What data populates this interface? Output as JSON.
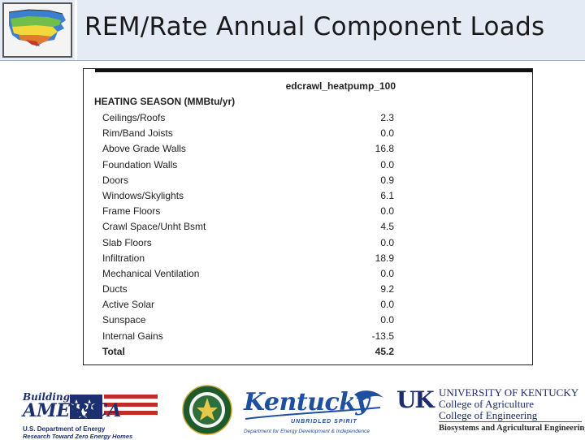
{
  "slide": {
    "title": "REM/Rate Annual Component Loads"
  },
  "report": {
    "column_header": "edcrawl_heatpump_100",
    "section_title": "HEATING SEASON (MMBtu/yr)",
    "rows": [
      {
        "label": "Ceilings/Roofs",
        "value": "2.3"
      },
      {
        "label": "Rim/Band Joists",
        "value": "0.0"
      },
      {
        "label": "Above Grade Walls",
        "value": "16.8"
      },
      {
        "label": "Foundation Walls",
        "value": "0.0"
      },
      {
        "label": "Doors",
        "value": "0.9"
      },
      {
        "label": "Windows/Skylights",
        "value": "6.1"
      },
      {
        "label": "Frame Floors",
        "value": "0.0"
      },
      {
        "label": "Crawl Space/Unht Bsmt",
        "value": "4.5"
      },
      {
        "label": "Slab Floors",
        "value": "0.0"
      },
      {
        "label": "Infiltration",
        "value": "18.9"
      },
      {
        "label": "Mechanical Ventilation",
        "value": "0.0"
      },
      {
        "label": "Ducts",
        "value": "9.2"
      },
      {
        "label": "Active Solar",
        "value": "0.0"
      },
      {
        "label": "Sunspace",
        "value": "0.0"
      },
      {
        "label": "Internal Gains",
        "value": "-13.5"
      },
      {
        "label": "Total",
        "value": "45.2"
      }
    ]
  },
  "footer": {
    "building_america": {
      "line1": "Building",
      "line2": "AMERICA",
      "line3": "U.S. Department of Energy",
      "line4": "Research Toward Zero Energy Homes"
    },
    "kentucky": {
      "word": "Kentucky",
      "tagline": "UNBRIDLED SPIRIT",
      "dept": "Department for Energy Development & Independence"
    },
    "uk": {
      "mark": "UK",
      "line1": "UNIVERSITY OF KENTUCKY",
      "line2": "College of Agriculture",
      "line3": "College of Engineering",
      "line4": "Biosystems and Agricultural Engineering"
    }
  },
  "colors": {
    "header_bg": "#e4ebf5",
    "ky_blue": "#1f4fa0",
    "uk_navy": "#1d2c6b"
  }
}
